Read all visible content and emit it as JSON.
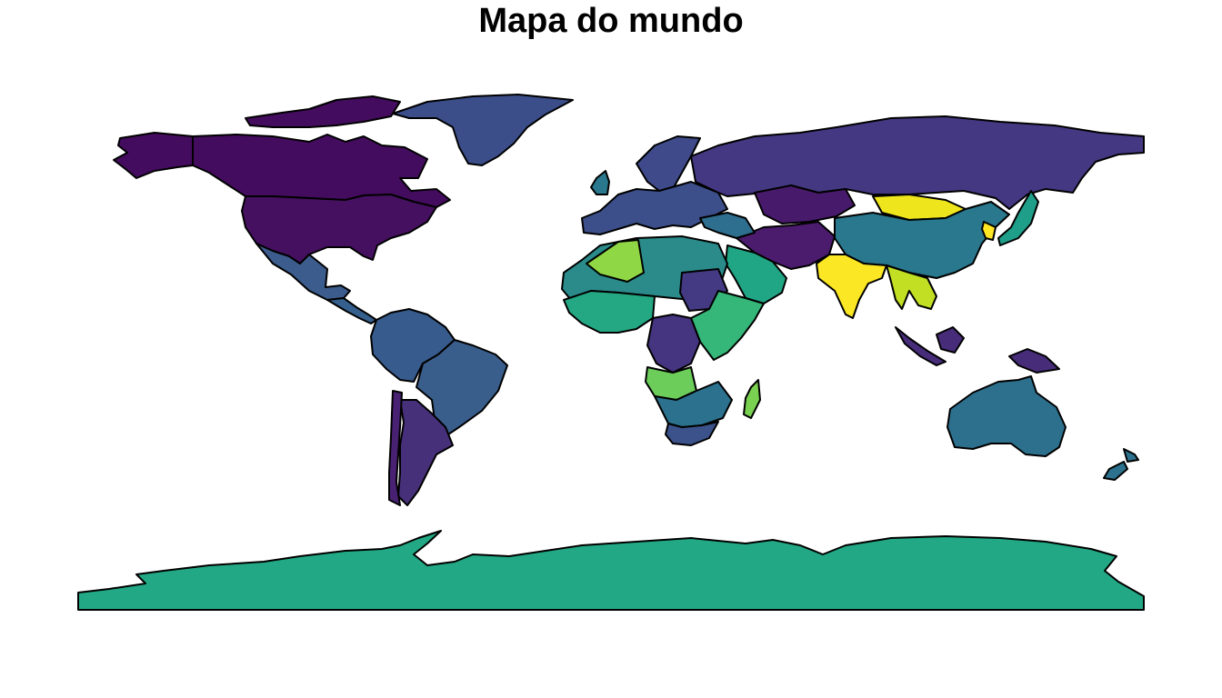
{
  "map": {
    "title": "Mapa do mundo",
    "projection": "equirectangular",
    "palette": [
      "#440154",
      "#472d7b",
      "#3b528b",
      "#2c728e",
      "#21918c",
      "#28ae80",
      "#5ec962",
      "#addc30",
      "#fde725"
    ],
    "regions": [
      {
        "name": "antarctica",
        "fill": "#22a884"
      },
      {
        "name": "canada",
        "fill": "#440c5e"
      },
      {
        "name": "united-states",
        "fill": "#451060"
      },
      {
        "name": "alaska",
        "fill": "#440c5e"
      },
      {
        "name": "greenland",
        "fill": "#3b4e8a"
      },
      {
        "name": "mexico",
        "fill": "#3b5c8c"
      },
      {
        "name": "central-america",
        "fill": "#355f8d"
      },
      {
        "name": "south-america-north",
        "fill": "#375b8d"
      },
      {
        "name": "brazil",
        "fill": "#3a5e8c"
      },
      {
        "name": "argentina",
        "fill": "#47307a"
      },
      {
        "name": "chile",
        "fill": "#482173"
      },
      {
        "name": "russia",
        "fill": "#453882"
      },
      {
        "name": "europe",
        "fill": "#3c4f8a"
      },
      {
        "name": "scandinavia",
        "fill": "#3e4a89"
      },
      {
        "name": "uk",
        "fill": "#2a788e"
      },
      {
        "name": "north-africa",
        "fill": "#2a8b8a"
      },
      {
        "name": "algeria-libya",
        "fill": "#8fd744"
      },
      {
        "name": "west-africa",
        "fill": "#24a884"
      },
      {
        "name": "sudan",
        "fill": "#443983"
      },
      {
        "name": "east-africa",
        "fill": "#35b779"
      },
      {
        "name": "congo",
        "fill": "#45347f"
      },
      {
        "name": "angola",
        "fill": "#6ccd5a"
      },
      {
        "name": "southern-africa",
        "fill": "#2c728e"
      },
      {
        "name": "south-africa",
        "fill": "#3b528b"
      },
      {
        "name": "madagascar",
        "fill": "#7ad151"
      },
      {
        "name": "arabia",
        "fill": "#21a685"
      },
      {
        "name": "middle-east",
        "fill": "#2e6e8e"
      },
      {
        "name": "iran-central-asia",
        "fill": "#4b1b6e"
      },
      {
        "name": "kazakhstan",
        "fill": "#481a6c"
      },
      {
        "name": "india",
        "fill": "#fbe723"
      },
      {
        "name": "china",
        "fill": "#29788e"
      },
      {
        "name": "mongolia",
        "fill": "#efe51c"
      },
      {
        "name": "southeast-asia",
        "fill": "#c2df23"
      },
      {
        "name": "indonesia",
        "fill": "#472c7a"
      },
      {
        "name": "japan",
        "fill": "#1f9e89"
      },
      {
        "name": "australia",
        "fill": "#2d708e"
      },
      {
        "name": "new-zealand",
        "fill": "#2c728e"
      },
      {
        "name": "korea",
        "fill": "#fde725"
      }
    ]
  }
}
